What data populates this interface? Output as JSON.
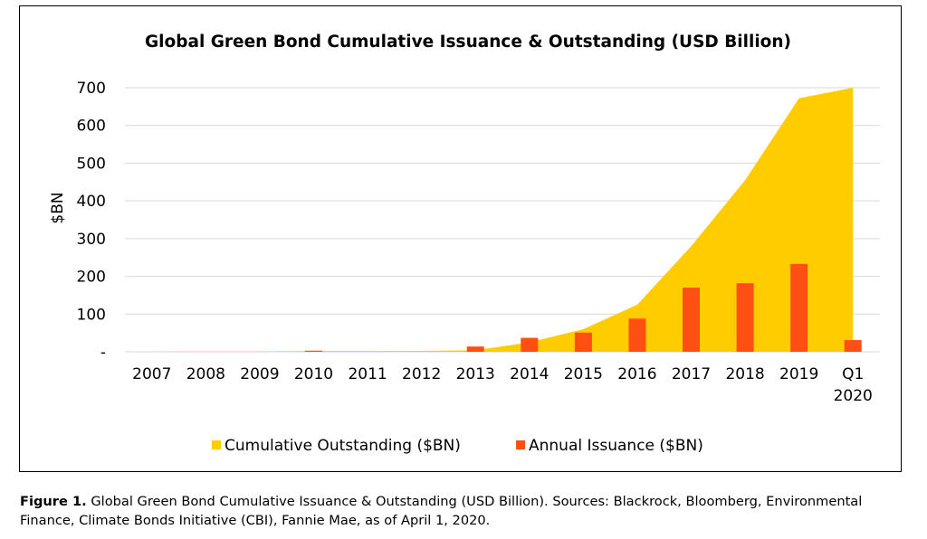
{
  "chart_data": {
    "type": "area+bar",
    "title": "Global Green Bond Cumulative Issuance & Outstanding (USD Billion)",
    "ylabel": "$BN",
    "xlabel": "",
    "categories": [
      "2007",
      "2008",
      "2009",
      "2010",
      "2011",
      "2012",
      "2013",
      "2014",
      "2015",
      "2016",
      "2017",
      "2018",
      "2019",
      "Q1 2020"
    ],
    "x_tick_labels": [
      [
        "2007"
      ],
      [
        "2008"
      ],
      [
        "2009"
      ],
      [
        "2010"
      ],
      [
        "2011"
      ],
      [
        "2012"
      ],
      [
        "2013"
      ],
      [
        "2014"
      ],
      [
        "2015"
      ],
      [
        "2016"
      ],
      [
        "2017"
      ],
      [
        "2018"
      ],
      [
        "2019"
      ],
      [
        "Q1",
        "2020"
      ]
    ],
    "ylim": [
      0,
      700
    ],
    "yticks": [
      {
        "value": 0,
        "label": "-"
      },
      {
        "value": 100,
        "label": "100"
      },
      {
        "value": 200,
        "label": "200"
      },
      {
        "value": 300,
        "label": "300"
      },
      {
        "value": 400,
        "label": "400"
      },
      {
        "value": 500,
        "label": "500"
      },
      {
        "value": 600,
        "label": "600"
      },
      {
        "value": 700,
        "label": "700"
      }
    ],
    "grid": true,
    "legend_position": "bottom",
    "series": [
      {
        "name": "Cumulative Outstanding ($BN)",
        "kind": "area",
        "color": "#FFCC00",
        "values": [
          0.5,
          0.8,
          1,
          2,
          2,
          2.5,
          4,
          25,
          60,
          125,
          280,
          455,
          672,
          700
        ]
      },
      {
        "name": "Annual Issuance ($BN)",
        "kind": "bar",
        "color": "#FF4F12",
        "values": [
          0,
          0,
          0,
          3,
          0,
          0,
          14,
          37,
          51,
          88,
          170,
          182,
          233,
          31
        ]
      }
    ]
  },
  "caption": {
    "label": "Figure 1.",
    "text": "Global Green Bond Cumulative Issuance & Outstanding (USD Billion). Sources: Blackrock, Bloomberg, Environmental Finance, Climate Bonds Initiative (CBI), Fannie Mae, as of April 1, 2020."
  },
  "colors": {
    "area": "#FFCC00",
    "bar": "#FF4F12",
    "grid": "#d9d9d9",
    "border": "#000000"
  }
}
